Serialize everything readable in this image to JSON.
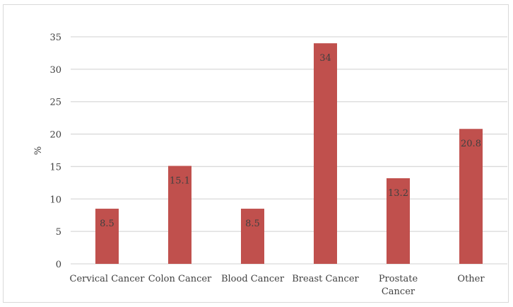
{
  "chart_data": {
    "type": "bar",
    "title": "",
    "xlabel": "",
    "ylabel": "%",
    "categories": [
      [
        "Cervical Cancer"
      ],
      [
        "Colon Cancer"
      ],
      [
        "Blood Cancer"
      ],
      [
        "Breast Cancer"
      ],
      [
        "Prostate",
        "Cancer"
      ],
      [
        "Other"
      ]
    ],
    "values": [
      8.5,
      15.1,
      8.5,
      34,
      13.2,
      20.8
    ],
    "data_labels": [
      "8.5",
      "15.1",
      "8.5",
      "34",
      "13.2",
      "20.8"
    ],
    "ylim": [
      0,
      35
    ],
    "yticks": [
      "0",
      "5",
      "10",
      "15",
      "20",
      "25",
      "30",
      "35"
    ],
    "grid": true,
    "legend": "none",
    "bar_color": "#c0504d",
    "grid_color": "#d9d9d9"
  }
}
